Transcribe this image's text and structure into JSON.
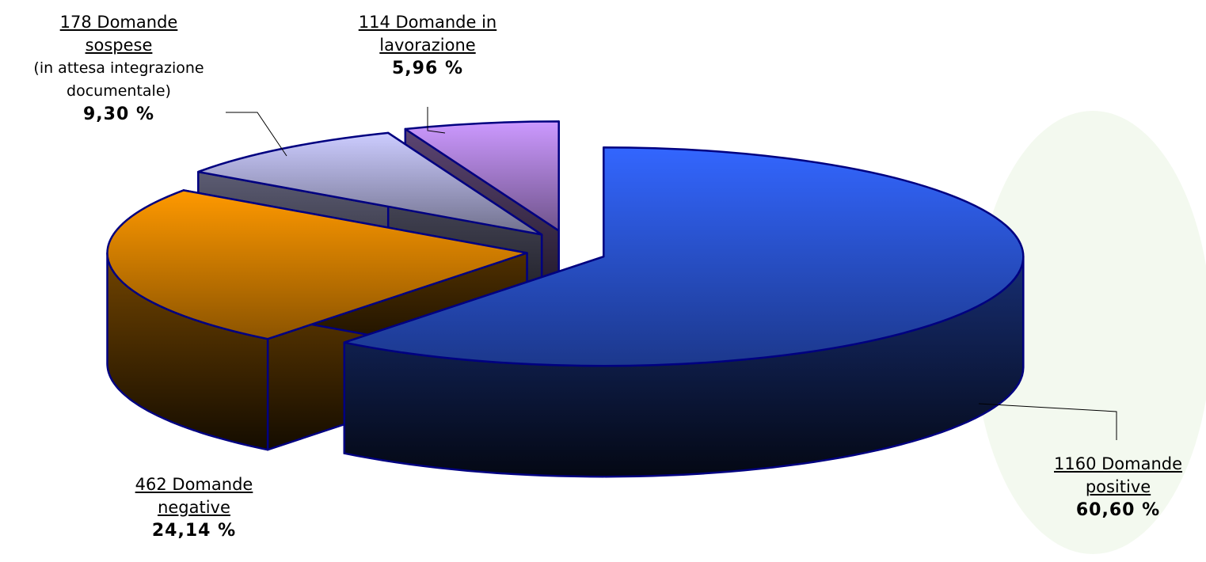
{
  "chart_data": {
    "type": "pie",
    "three_d": true,
    "categories": [
      "1160 Domande positive",
      "462 Domande negative",
      "178 Domande sospese",
      "114 Domande in lavorazione"
    ],
    "values": [
      60.6,
      24.14,
      9.3,
      5.96
    ],
    "value_labels": [
      "60,60 %",
      "24,14 %",
      "9,30 %",
      "5,96 %"
    ],
    "annotations": [
      "(in attesa integrazione documentale)"
    ],
    "colors": [
      "#3366ff",
      "#ff9900",
      "#ccccff",
      "#cc99ff"
    ],
    "edge_color": "#000080"
  }
}
